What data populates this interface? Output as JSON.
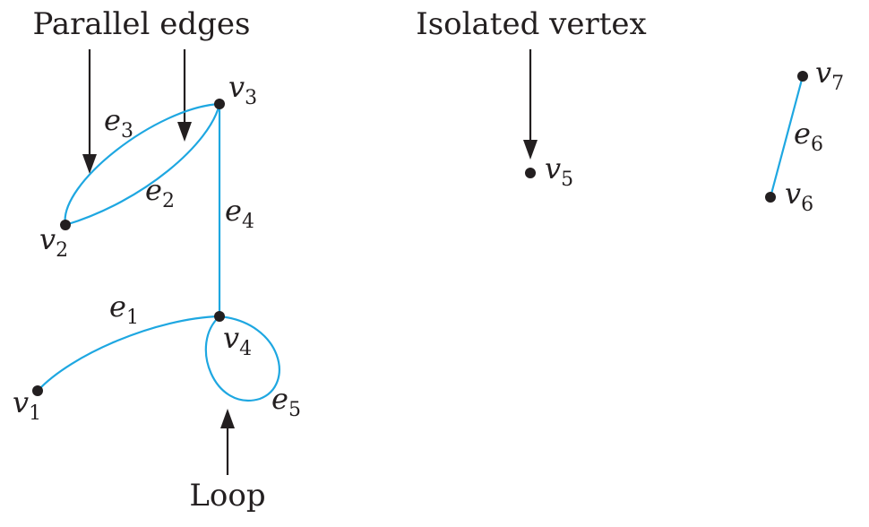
{
  "annotations": {
    "parallel_edges": "Parallel edges",
    "isolated_vertex": "Isolated vertex",
    "loop": "Loop"
  },
  "vertices": [
    {
      "letter": "v",
      "sub": "1"
    },
    {
      "letter": "v",
      "sub": "2"
    },
    {
      "letter": "v",
      "sub": "3"
    },
    {
      "letter": "v",
      "sub": "4"
    },
    {
      "letter": "v",
      "sub": "5"
    },
    {
      "letter": "v",
      "sub": "6"
    },
    {
      "letter": "v",
      "sub": "7"
    }
  ],
  "edges": [
    {
      "letter": "e",
      "sub": "1",
      "ends": [
        "v1",
        "v4"
      ]
    },
    {
      "letter": "e",
      "sub": "2",
      "ends": [
        "v2",
        "v3"
      ]
    },
    {
      "letter": "e",
      "sub": "3",
      "ends": [
        "v2",
        "v3"
      ]
    },
    {
      "letter": "e",
      "sub": "4",
      "ends": [
        "v3",
        "v4"
      ]
    },
    {
      "letter": "e",
      "sub": "5",
      "ends": [
        "v4",
        "v4"
      ]
    },
    {
      "letter": "e",
      "sub": "6",
      "ends": [
        "v6",
        "v7"
      ]
    }
  ],
  "colors": {
    "edge": "#1ea7e1",
    "vertex": "#231f20",
    "text": "#231f20"
  }
}
